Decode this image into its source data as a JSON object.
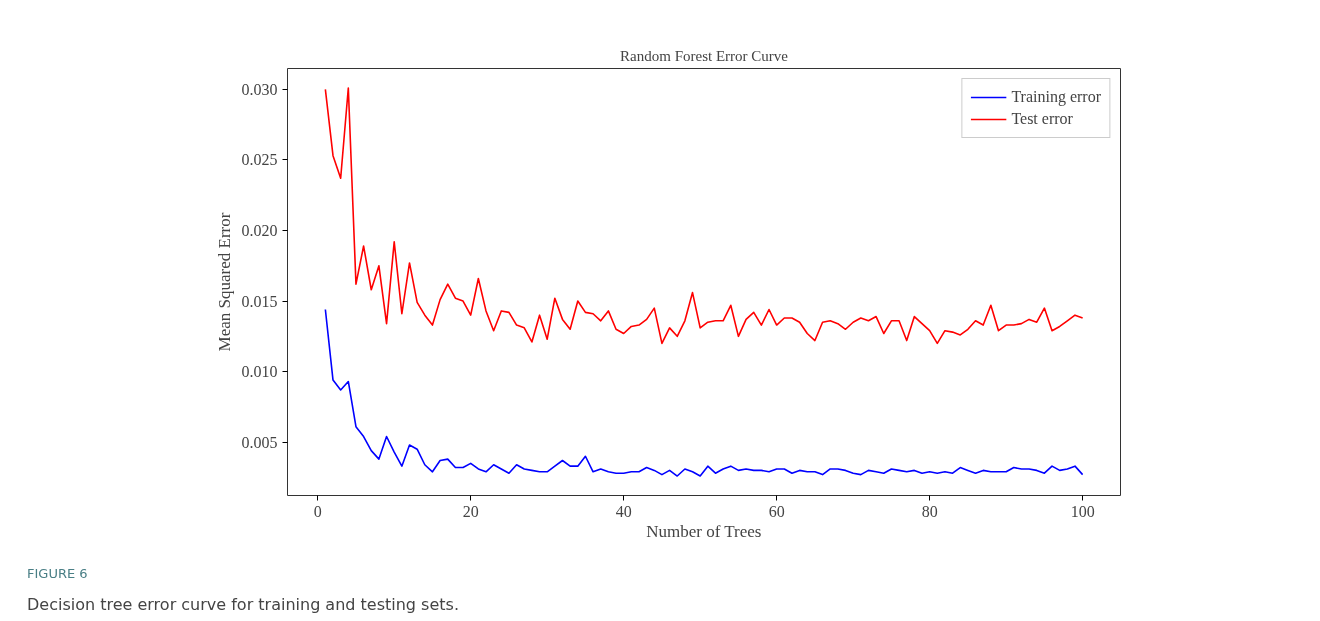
{
  "chart_data": {
    "type": "line",
    "title": "Random Forest Error Curve",
    "xlabel": "Number of Trees",
    "ylabel": "Mean Squared Error",
    "x": [
      1,
      2,
      3,
      4,
      5,
      6,
      7,
      8,
      9,
      10,
      11,
      12,
      13,
      14,
      15,
      16,
      17,
      18,
      19,
      20,
      21,
      22,
      23,
      24,
      25,
      26,
      27,
      28,
      29,
      30,
      31,
      32,
      33,
      34,
      35,
      36,
      37,
      38,
      39,
      40,
      41,
      42,
      43,
      44,
      45,
      46,
      47,
      48,
      49,
      50,
      51,
      52,
      53,
      54,
      55,
      56,
      57,
      58,
      59,
      60,
      61,
      62,
      63,
      64,
      65,
      66,
      67,
      68,
      69,
      70,
      71,
      72,
      73,
      74,
      75,
      76,
      77,
      78,
      79,
      80,
      81,
      82,
      83,
      84,
      85,
      86,
      87,
      88,
      89,
      90,
      91,
      92,
      93,
      94,
      95,
      96,
      97,
      98,
      99,
      100
    ],
    "series": [
      {
        "name": "Training error",
        "color": "#0000ff",
        "values": [
          0.0144,
          0.0094,
          0.0087,
          0.0093,
          0.0061,
          0.0054,
          0.0044,
          0.0038,
          0.0054,
          0.0043,
          0.0033,
          0.0048,
          0.0045,
          0.0034,
          0.0029,
          0.0037,
          0.0038,
          0.0032,
          0.0032,
          0.0035,
          0.0031,
          0.0029,
          0.0034,
          0.0031,
          0.0028,
          0.0034,
          0.0031,
          0.003,
          0.0029,
          0.0029,
          0.0033,
          0.0037,
          0.0033,
          0.0033,
          0.004,
          0.0029,
          0.0031,
          0.0029,
          0.0028,
          0.0028,
          0.0029,
          0.0029,
          0.0032,
          0.003,
          0.0027,
          0.003,
          0.0026,
          0.0031,
          0.0029,
          0.0026,
          0.0033,
          0.0028,
          0.0031,
          0.0033,
          0.003,
          0.0031,
          0.003,
          0.003,
          0.0029,
          0.0031,
          0.0031,
          0.0028,
          0.003,
          0.0029,
          0.0029,
          0.0027,
          0.0031,
          0.0031,
          0.003,
          0.0028,
          0.0027,
          0.003,
          0.0029,
          0.0028,
          0.0031,
          0.003,
          0.0029,
          0.003,
          0.0028,
          0.0029,
          0.0028,
          0.0029,
          0.0028,
          0.0032,
          0.003,
          0.0028,
          0.003,
          0.0029,
          0.0029,
          0.0029,
          0.0032,
          0.0031,
          0.0031,
          0.003,
          0.0028,
          0.0033,
          0.003,
          0.0031,
          0.0033,
          0.0027
        ]
      },
      {
        "name": "Test error",
        "color": "#ff0000",
        "values": [
          0.03,
          0.0253,
          0.0237,
          0.0301,
          0.0162,
          0.0189,
          0.0158,
          0.0175,
          0.0134,
          0.0192,
          0.0141,
          0.0177,
          0.0149,
          0.014,
          0.0133,
          0.0151,
          0.0162,
          0.0152,
          0.015,
          0.014,
          0.0166,
          0.0143,
          0.0129,
          0.0143,
          0.0142,
          0.0133,
          0.0131,
          0.0121,
          0.014,
          0.0123,
          0.0152,
          0.0137,
          0.013,
          0.015,
          0.0142,
          0.0141,
          0.0136,
          0.0143,
          0.013,
          0.0127,
          0.0132,
          0.0133,
          0.0137,
          0.0145,
          0.012,
          0.0131,
          0.0125,
          0.0136,
          0.0156,
          0.0131,
          0.0135,
          0.0136,
          0.0136,
          0.0147,
          0.0125,
          0.0137,
          0.0142,
          0.0133,
          0.0144,
          0.0133,
          0.0138,
          0.0138,
          0.0135,
          0.0127,
          0.0122,
          0.0135,
          0.0136,
          0.0134,
          0.013,
          0.0135,
          0.0138,
          0.0136,
          0.0139,
          0.0127,
          0.0136,
          0.0136,
          0.0122,
          0.0139,
          0.0134,
          0.0129,
          0.012,
          0.0129,
          0.0128,
          0.0126,
          0.013,
          0.0136,
          0.0133,
          0.0147,
          0.0129,
          0.0133,
          0.0133,
          0.0134,
          0.0137,
          0.0135,
          0.0145,
          0.0129,
          0.0132,
          0.0136,
          0.014,
          0.0138
        ]
      }
    ],
    "xlim": [
      -3.95,
      104.95
    ],
    "ylim": [
      0.00122,
      0.03148
    ],
    "xticks": [
      0,
      20,
      40,
      60,
      80,
      100
    ],
    "yticks": [
      {
        "value": 0.005,
        "label": "0.005"
      },
      {
        "value": 0.01,
        "label": "0.010"
      },
      {
        "value": 0.015,
        "label": "0.015"
      },
      {
        "value": 0.02,
        "label": "0.020"
      },
      {
        "value": 0.025,
        "label": "0.025"
      },
      {
        "value": 0.03,
        "label": "0.030"
      }
    ],
    "legend": "top right",
    "annotations": [
      "FIGURE 6",
      "Decision tree error curve for training and testing sets."
    ]
  }
}
